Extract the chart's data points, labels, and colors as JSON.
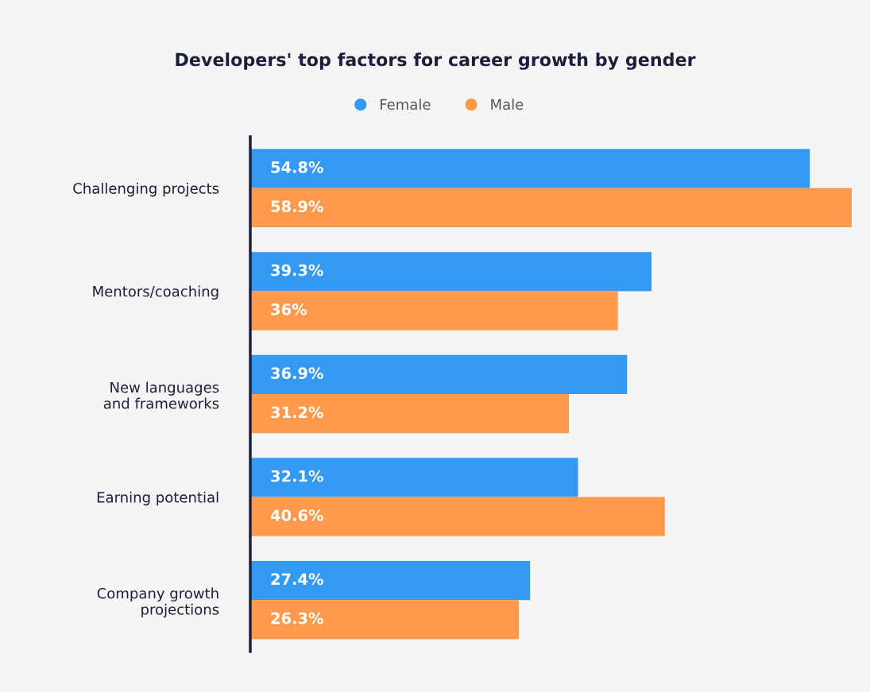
{
  "chart_data": {
    "type": "bar",
    "orientation": "horizontal",
    "title": "Developers' top factors for career growth by gender",
    "categories": [
      "Challenging projects",
      "Mentors/coaching",
      "New languages\nand frameworks",
      "Earning potential",
      "Company growth\nprojections"
    ],
    "series": [
      {
        "name": "Female",
        "color": "#3399f3",
        "values": [
          54.8,
          39.3,
          36.9,
          32.1,
          27.4
        ],
        "value_labels": [
          "54.8%",
          "39.3%",
          "36.9%",
          "32.1%",
          "27.4%"
        ]
      },
      {
        "name": "Male",
        "color": "#ff9a4d",
        "values": [
          58.9,
          36,
          31.2,
          40.6,
          26.3
        ],
        "value_labels": [
          "58.9%",
          "36%",
          "31.2%",
          "40.6%",
          "26.3%"
        ]
      }
    ],
    "legend": "top",
    "grid": false,
    "tick_labels": "y"
  }
}
